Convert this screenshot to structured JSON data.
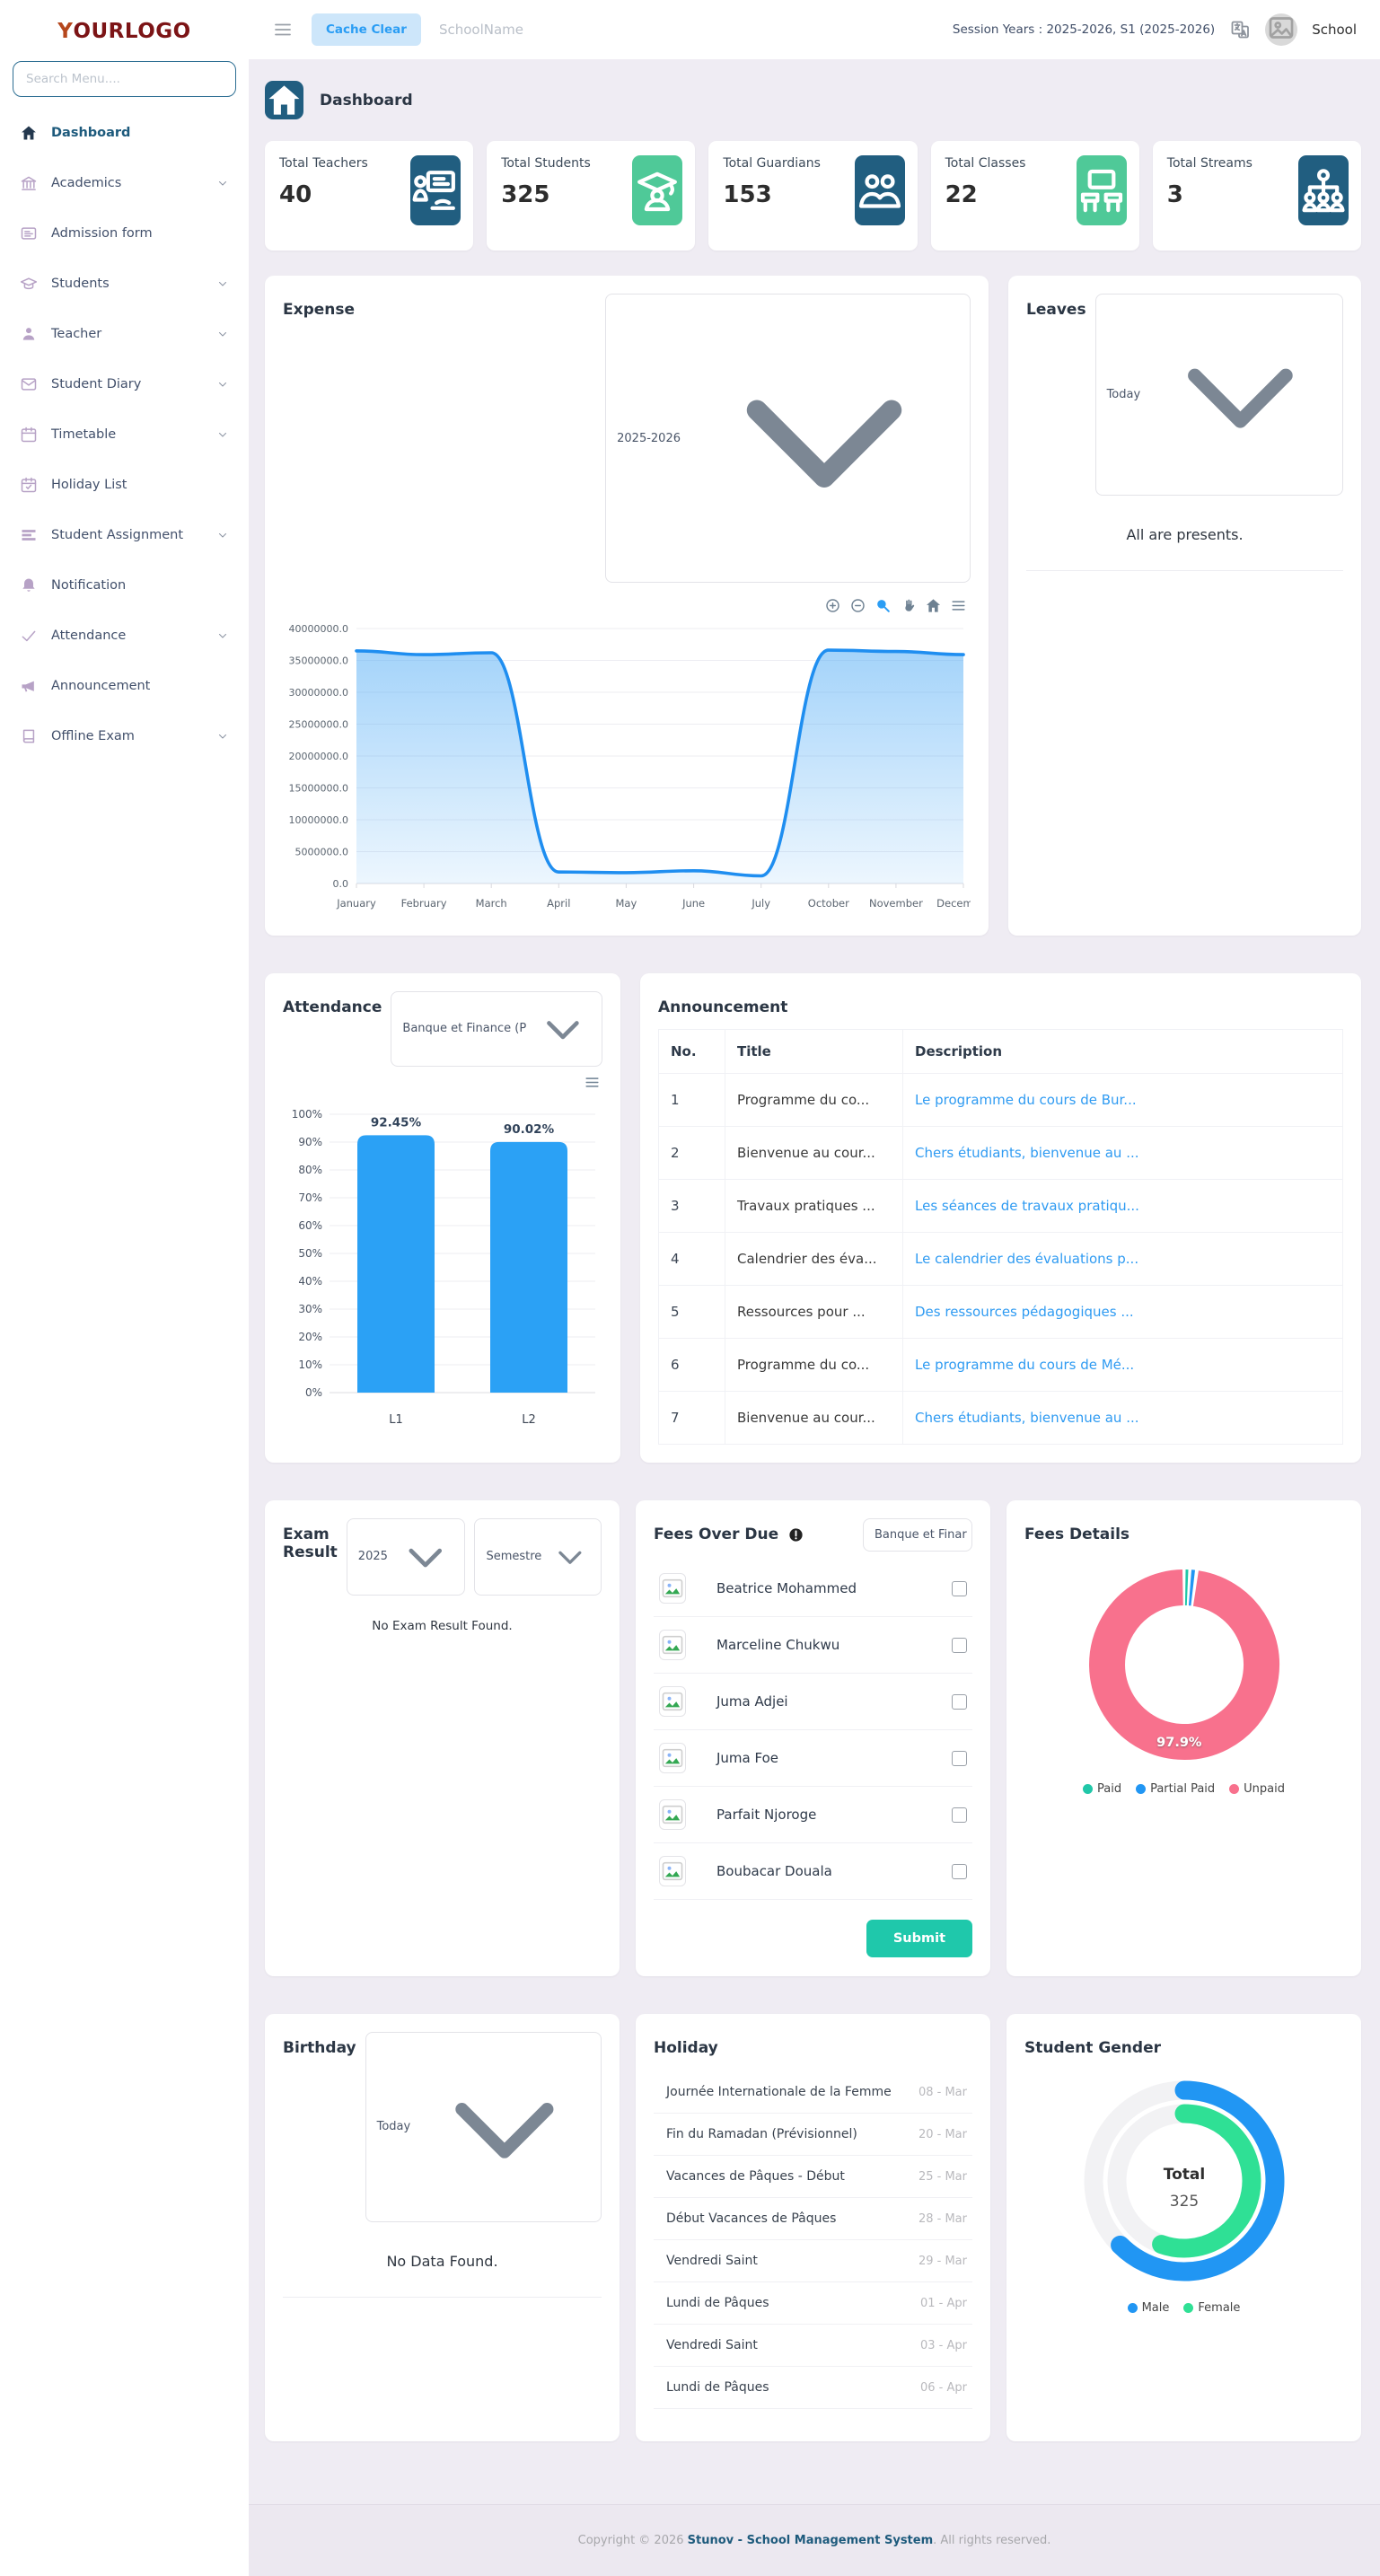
{
  "sidebar": {
    "logo_mark": "Y",
    "logo_text": "OURLOGO",
    "search_placeholder": "Search Menu....",
    "items": [
      {
        "label": "Dashboard",
        "icon": "home-icon",
        "active": true,
        "chevron": false
      },
      {
        "label": "Academics",
        "icon": "bank-icon",
        "chevron": true
      },
      {
        "label": "Admission form",
        "icon": "form-icon",
        "chevron": false
      },
      {
        "label": "Students",
        "icon": "graduation-cap-icon",
        "chevron": true
      },
      {
        "label": "Teacher",
        "icon": "person-icon",
        "chevron": true
      },
      {
        "label": "Student Diary",
        "icon": "envelope-icon",
        "chevron": true
      },
      {
        "label": "Timetable",
        "icon": "calendar-icon",
        "chevron": true
      },
      {
        "label": "Holiday List",
        "icon": "calendar-check-icon",
        "chevron": false
      },
      {
        "label": "Student Assignment",
        "icon": "assignment-icon",
        "chevron": true
      },
      {
        "label": "Notification",
        "icon": "bell-icon",
        "chevron": false
      },
      {
        "label": "Attendance",
        "icon": "check-icon",
        "chevron": true
      },
      {
        "label": "Announcement",
        "icon": "megaphone-icon",
        "chevron": false
      },
      {
        "label": "Offline Exam",
        "icon": "book-icon",
        "chevron": true
      }
    ]
  },
  "header": {
    "cache_clear_label": "Cache Clear",
    "school_name": "SchoolName",
    "session_text": "Session Years : 2025-2026, S1 (2025-2026)",
    "profile_label": "School"
  },
  "breadcrumb": {
    "title": "Dashboard"
  },
  "stats": [
    {
      "label": "Total Teachers",
      "value": "40",
      "icon": "teacher-board-icon",
      "green": false
    },
    {
      "label": "Total Students",
      "value": "325",
      "icon": "student-cap-icon",
      "green": true
    },
    {
      "label": "Total Guardians",
      "value": "153",
      "icon": "guardians-icon",
      "green": false
    },
    {
      "label": "Total Classes",
      "value": "22",
      "icon": "classroom-icon",
      "green": true
    },
    {
      "label": "Total Streams",
      "value": "3",
      "icon": "streams-icon",
      "green": false
    }
  ],
  "panels": {
    "expense": {
      "title": "Expense",
      "year_filter": "2025-2026",
      "toolbar": [
        "zoom-in-icon",
        "zoom-out-icon",
        "selection-zoom-icon",
        "pan-icon",
        "home-solid-icon",
        "menu-icon"
      ]
    },
    "leaves": {
      "title": "Leaves",
      "filter": "Today",
      "message": "All are presents."
    },
    "attendance": {
      "title": "Attendance",
      "filter": "Banque et Finance (P"
    },
    "announcement": {
      "title": "Announcement",
      "columns": [
        "No.",
        "Title",
        "Description"
      ],
      "rows": [
        {
          "no": "1",
          "title": "Programme du co...",
          "description": "Le programme du cours de Bur..."
        },
        {
          "no": "2",
          "title": "Bienvenue au cour...",
          "description": "Chers étudiants, bienvenue au ..."
        },
        {
          "no": "3",
          "title": "Travaux pratiques ...",
          "description": "Les séances de travaux pratiqu..."
        },
        {
          "no": "4",
          "title": "Calendrier des éva...",
          "description": "Le calendrier des évaluations p..."
        },
        {
          "no": "5",
          "title": "Ressources pour ...",
          "description": "Des ressources pédagogiques ..."
        },
        {
          "no": "6",
          "title": "Programme du co...",
          "description": "Le programme du cours de Mé..."
        },
        {
          "no": "7",
          "title": "Bienvenue au cour...",
          "description": "Chers étudiants, bienvenue au ..."
        }
      ]
    },
    "exam_result": {
      "title": "Exam Result",
      "year_filter": "2025",
      "semester_filter": "Semestre",
      "empty_message": "No Exam Result Found."
    },
    "fees_over_due": {
      "title": "Fees Over Due",
      "filter": "Banque et Finar",
      "students": [
        {
          "name": "Beatrice Mohammed"
        },
        {
          "name": "Marceline Chukwu"
        },
        {
          "name": "Juma Adjei"
        },
        {
          "name": "Juma Foe"
        },
        {
          "name": "Parfait Njoroge"
        },
        {
          "name": "Boubacar Douala"
        }
      ],
      "submit_label": "Submit"
    },
    "fees_details": {
      "title": "Fees Details"
    },
    "birthday": {
      "title": "Birthday",
      "filter": "Today",
      "empty_message": "No Data Found."
    },
    "holiday": {
      "title": "Holiday",
      "rows": [
        {
          "name": "Journée Internationale de la Femme",
          "date": "08 - Mar"
        },
        {
          "name": "Fin du Ramadan (Prévisionnel)",
          "date": "20 - Mar"
        },
        {
          "name": "Vacances de Pâques - Début",
          "date": "25 - Mar"
        },
        {
          "name": "Début Vacances de Pâques",
          "date": "28 - Mar"
        },
        {
          "name": "Vendredi Saint",
          "date": "29 - Mar"
        },
        {
          "name": "Lundi de Pâques",
          "date": "01 - Apr"
        },
        {
          "name": "Vendredi Saint",
          "date": "03 - Apr"
        },
        {
          "name": "Lundi de Pâques",
          "date": "06 - Apr"
        }
      ]
    },
    "student_gender": {
      "title": "Student Gender"
    }
  },
  "footer": {
    "prefix": "Copyright © 2026 ",
    "brand": "Stunov - School Management System",
    "suffix": ". All rights reserved."
  },
  "chart_data": [
    {
      "id": "expense",
      "type": "area",
      "title": "Expense",
      "x": [
        "January",
        "February",
        "March",
        "April",
        "May",
        "June",
        "July",
        "October",
        "November",
        "December"
      ],
      "values": [
        36500000,
        35900000,
        36200000,
        1800000,
        1700000,
        2000000,
        1200000,
        36600000,
        36400000,
        35900000
      ],
      "ylim": [
        0,
        40000000
      ],
      "ytick_step": 5000000,
      "line_color": "#1f8ef0",
      "grid": true,
      "legend_position": "none"
    },
    {
      "id": "attendance",
      "type": "bar",
      "title": "Attendance",
      "categories": [
        "L1",
        "L2"
      ],
      "values": [
        92.45,
        90.02
      ],
      "labels": [
        "92.45%",
        "90.02%"
      ],
      "ylim": [
        0,
        100
      ],
      "ytick_step": 10,
      "bar_color": "#2ba1f5",
      "grid": true
    },
    {
      "id": "fees_details",
      "type": "donut",
      "title": "Fees Details",
      "labels": [
        "Paid",
        "Partial Paid",
        "Unpaid"
      ],
      "values": [
        0.9,
        1.2,
        97.9
      ],
      "colors": [
        "#21c7a8",
        "#2196f3",
        "#f8718d"
      ],
      "slice_label": "97.9%",
      "legend_position": "bottom"
    },
    {
      "id": "student_gender",
      "type": "radial",
      "title": "Student Gender",
      "series": [
        {
          "name": "Male",
          "arc_percent": 62.5,
          "color": "#2196f3"
        },
        {
          "name": "Female",
          "arc_percent": 55.5,
          "color": "#2fe095"
        }
      ],
      "center_title": "Total",
      "center_value": "325",
      "legend_position": "bottom"
    }
  ]
}
